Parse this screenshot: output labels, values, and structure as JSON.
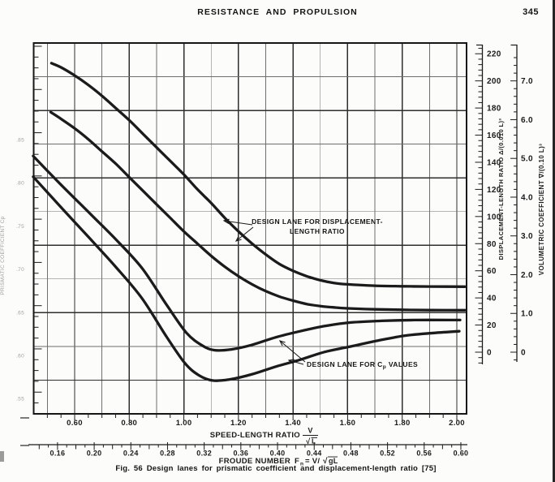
{
  "page": {
    "header_title": "RESISTANCE AND PROPULSION",
    "page_number": "345",
    "caption": "Fig. 56   Design lanes for prismatic coefficient and displacement-length ratio [75]"
  },
  "colors": {
    "ink": "#1b1b1b",
    "grid_minor": "#6e6e6e",
    "grid_major": "#2e2e2e",
    "border": "#161616",
    "faint_label": "#8a8a8a",
    "paper": "#fcfcfa"
  },
  "chart_data": {
    "type": "line",
    "title": "",
    "grid": "on, square grid; minor lines every 0.05 speed-length horizontally is not used - vertical grid every 0.10, horizontal every cell, heavier every other line",
    "x_axis": {
      "label_main": "SPEED-LENGTH RATIO",
      "label_frac_num": "V",
      "label_frac_radical": "√",
      "label_frac_arg": "L",
      "range": [
        0.45,
        2.04
      ],
      "tick_labels": [
        "0.60",
        "0.80",
        "1.00",
        "1.20",
        "1.40",
        "1.60",
        "1.80",
        "2.00"
      ],
      "minor_tick_step": 0.05,
      "grid_step": 0.1
    },
    "x_axis_secondary": {
      "label_main": "FROUDE NUMBER",
      "label_f": "F",
      "label_sub": "n",
      "label_eq": "= V/",
      "label_radical": "√",
      "label_arg": "gL",
      "relation": "Fn = 0.2978 · (V/√L)",
      "tick_labels": [
        "0.16",
        "0.20",
        "0.24",
        "0.28",
        "0.32",
        "0.36",
        "0.40",
        "0.44",
        "0.48",
        "0.52",
        "0.56",
        "0.60"
      ],
      "minor_tick_step": 0.01
    },
    "y_axis_right": {
      "label": "DISPLACEMENT-LENGTH RATIO  Δ/(0.010 L)³",
      "tick_labels": [
        "220",
        "200",
        "180",
        "160",
        "140",
        "120",
        "100",
        "80",
        "60",
        "40",
        "20",
        "0"
      ],
      "minor_tick_step": 4,
      "range": [
        -8,
        228
      ]
    },
    "y_axis_far_right": {
      "label": "VOLUMETRIC COEFFICIENT  ∇/(0.10 L)³",
      "tick_labels": [
        "7.0",
        "6.0",
        "5.0",
        "4.0",
        "3.0",
        "2.0",
        "1.0",
        "0"
      ],
      "minor_tick_step": 0.2,
      "relation": "∇/(0.10L)³ = 0.035 · Δ/(0.010L)³"
    },
    "y_axis_left": {
      "label": "PRISMATIC COEFFICIENT Cp",
      "tick_labels": [
        ".85",
        ".80",
        ".75",
        ".70",
        ".65",
        ".60",
        ".55"
      ],
      "note_visibility": "very faint, clipped at left page edge in scan"
    },
    "series": [
      {
        "name": "displacement-length-lane-upper",
        "axis": "displacement",
        "points": [
          [
            0.515,
            213
          ],
          [
            0.55,
            210
          ],
          [
            0.6,
            204
          ],
          [
            0.65,
            197
          ],
          [
            0.7,
            189
          ],
          [
            0.75,
            180
          ],
          [
            0.8,
            171
          ],
          [
            0.85,
            161
          ],
          [
            0.9,
            151
          ],
          [
            0.95,
            141
          ],
          [
            1.0,
            131
          ],
          [
            1.05,
            120
          ],
          [
            1.1,
            110
          ],
          [
            1.15,
            99
          ],
          [
            1.2,
            89
          ],
          [
            1.25,
            80
          ],
          [
            1.3,
            72
          ],
          [
            1.35,
            65
          ],
          [
            1.4,
            60
          ],
          [
            1.45,
            56
          ],
          [
            1.5,
            53
          ],
          [
            1.55,
            51
          ],
          [
            1.6,
            50
          ],
          [
            1.7,
            49
          ],
          [
            1.8,
            48.6
          ],
          [
            1.9,
            48.4
          ],
          [
            2.03,
            48.3
          ]
        ]
      },
      {
        "name": "displacement-length-lane-lower",
        "axis": "displacement",
        "points": [
          [
            0.512,
            177
          ],
          [
            0.55,
            172
          ],
          [
            0.6,
            165
          ],
          [
            0.65,
            157
          ],
          [
            0.7,
            148
          ],
          [
            0.75,
            139
          ],
          [
            0.8,
            129
          ],
          [
            0.85,
            119
          ],
          [
            0.9,
            109
          ],
          [
            0.95,
            99
          ],
          [
            1.0,
            89
          ],
          [
            1.05,
            80
          ],
          [
            1.1,
            71
          ],
          [
            1.15,
            63
          ],
          [
            1.2,
            56
          ],
          [
            1.25,
            50
          ],
          [
            1.3,
            45
          ],
          [
            1.35,
            41
          ],
          [
            1.4,
            38
          ],
          [
            1.45,
            35.5
          ],
          [
            1.5,
            34
          ],
          [
            1.55,
            33
          ],
          [
            1.6,
            32.3
          ],
          [
            1.7,
            31.6
          ],
          [
            1.8,
            31.2
          ],
          [
            1.9,
            31
          ],
          [
            2.03,
            30.9
          ]
        ]
      },
      {
        "name": "cp-lane-upper",
        "axis": "cp",
        "points": [
          [
            0.448,
            0.831
          ],
          [
            0.549,
            0.798
          ],
          [
            0.654,
            0.765
          ],
          [
            0.752,
            0.734
          ],
          [
            0.847,
            0.701
          ],
          [
            0.936,
            0.659
          ],
          [
            1.01,
            0.626
          ],
          [
            1.07,
            0.611
          ],
          [
            1.114,
            0.606
          ],
          [
            1.174,
            0.607
          ],
          [
            1.248,
            0.612
          ],
          [
            1.337,
            0.621
          ],
          [
            1.426,
            0.628
          ],
          [
            1.516,
            0.634
          ],
          [
            1.605,
            0.638
          ],
          [
            1.724,
            0.64
          ],
          [
            1.843,
            0.641
          ],
          [
            2.012,
            0.641
          ]
        ]
      },
      {
        "name": "cp-lane-lower",
        "axis": "cp",
        "points": [
          [
            0.448,
            0.807
          ],
          [
            0.549,
            0.772
          ],
          [
            0.654,
            0.736
          ],
          [
            0.752,
            0.702
          ],
          [
            0.847,
            0.666
          ],
          [
            0.936,
            0.622
          ],
          [
            1.004,
            0.591
          ],
          [
            1.055,
            0.577
          ],
          [
            1.105,
            0.571
          ],
          [
            1.165,
            0.572
          ],
          [
            1.248,
            0.578
          ],
          [
            1.337,
            0.587
          ],
          [
            1.426,
            0.595
          ],
          [
            1.516,
            0.604
          ],
          [
            1.605,
            0.61
          ],
          [
            1.709,
            0.617
          ],
          [
            1.813,
            0.623
          ],
          [
            1.917,
            0.626
          ],
          [
            2.009,
            0.628
          ]
        ]
      }
    ],
    "annotations": [
      {
        "id": "ann_displacement",
        "line1": "DESIGN LANE FOR DISPLACEMENT-",
        "line2": "LENGTH RATIO",
        "arrows": [
          [
            [
              311,
              277
            ],
            [
              276,
              272
            ]
          ],
          [
            [
              312,
              280
            ],
            [
              291,
              297
            ]
          ]
        ]
      },
      {
        "id": "ann_cp",
        "prefix": "DESIGN LANE FOR C",
        "subscript": "p",
        "suffix": " VALUES",
        "arrows": [
          [
            [
              376,
              446
            ],
            [
              345,
              420
            ]
          ],
          [
            [
              374,
              449
            ],
            [
              356,
              444
            ]
          ]
        ]
      }
    ]
  }
}
